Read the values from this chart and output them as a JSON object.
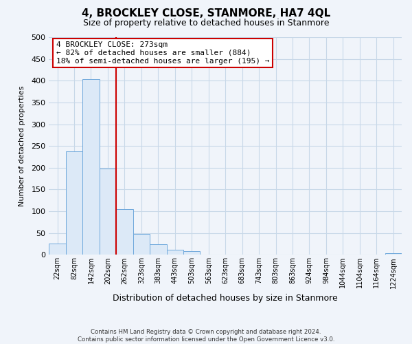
{
  "title": "4, BROCKLEY CLOSE, STANMORE, HA7 4QL",
  "subtitle": "Size of property relative to detached houses in Stanmore",
  "xlabel": "Distribution of detached houses by size in Stanmore",
  "ylabel": "Number of detached properties",
  "bin_labels": [
    "22sqm",
    "82sqm",
    "142sqm",
    "202sqm",
    "262sqm",
    "323sqm",
    "383sqm",
    "443sqm",
    "503sqm",
    "563sqm",
    "623sqm",
    "683sqm",
    "743sqm",
    "803sqm",
    "863sqm",
    "924sqm",
    "984sqm",
    "1044sqm",
    "1104sqm",
    "1164sqm",
    "1224sqm"
  ],
  "bar_heights": [
    26,
    238,
    403,
    198,
    105,
    48,
    25,
    12,
    8,
    0,
    0,
    0,
    0,
    0,
    0,
    0,
    0,
    0,
    0,
    0,
    4
  ],
  "bar_face_color": "#dce9f7",
  "bar_edge_color": "#6fa8dc",
  "red_line_x": 3.5,
  "annotation_text": "4 BROCKLEY CLOSE: 273sqm\n← 82% of detached houses are smaller (884)\n18% of semi-detached houses are larger (195) →",
  "annotation_box_color": "white",
  "annotation_box_edge_color": "#cc0000",
  "ylim": [
    0,
    500
  ],
  "yticks": [
    0,
    50,
    100,
    150,
    200,
    250,
    300,
    350,
    400,
    450,
    500
  ],
  "footer_line1": "Contains HM Land Registry data © Crown copyright and database right 2024.",
  "footer_line2": "Contains public sector information licensed under the Open Government Licence v3.0.",
  "bg_color": "#f0f4fa",
  "grid_color": "#c8d8e8"
}
